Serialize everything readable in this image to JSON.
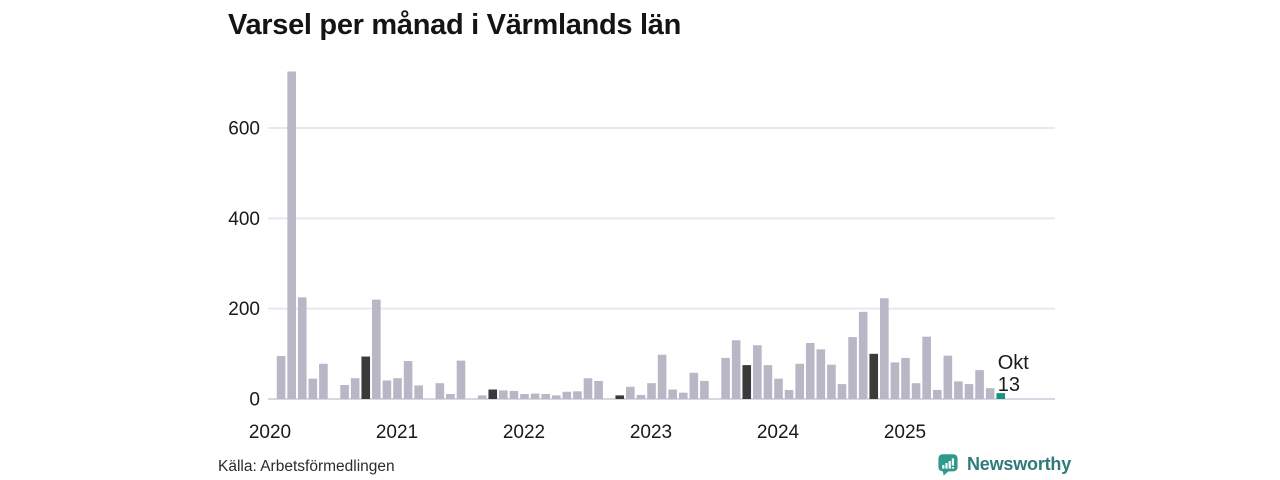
{
  "title": "Varsel per månad i Värmlands län",
  "footer": {
    "source": "Källa: Arbetsförmedlingen",
    "brand": "Newsworthy"
  },
  "colors": {
    "bar_default": "#b9b6c5",
    "bar_dark": "#3a3a3a",
    "bar_highlight": "#12947f",
    "gridline": "#e9e7f0",
    "axis_line": "#d9d7e3",
    "tick_text": "#1a1a1a",
    "title_text": "#141414",
    "source_text": "#2b2b2b",
    "brand_text": "#2e7b78",
    "brand_icon": "#2f9a8c"
  },
  "chart_data": {
    "type": "bar",
    "title": "Varsel per månad i Värmlands län",
    "xlabel": "",
    "ylabel": "",
    "ylim": [
      0,
      740
    ],
    "yticks": [
      0,
      200,
      400,
      600
    ],
    "grid": true,
    "legend": "none",
    "year_labels": [
      "2020",
      "2021",
      "2022",
      "2023",
      "2024",
      "2025"
    ],
    "months": [
      "2020-01",
      "2020-02",
      "2020-03",
      "2020-04",
      "2020-05",
      "2020-06",
      "2020-07",
      "2020-08",
      "2020-09",
      "2020-10",
      "2020-11",
      "2020-12",
      "2021-01",
      "2021-02",
      "2021-03",
      "2021-04",
      "2021-05",
      "2021-06",
      "2021-07",
      "2021-08",
      "2021-09",
      "2021-10",
      "2021-11",
      "2021-12",
      "2022-01",
      "2022-02",
      "2022-03",
      "2022-04",
      "2022-05",
      "2022-06",
      "2022-07",
      "2022-08",
      "2022-09",
      "2022-10",
      "2022-11",
      "2022-12",
      "2023-01",
      "2023-02",
      "2023-03",
      "2023-04",
      "2023-05",
      "2023-06",
      "2023-07",
      "2023-08",
      "2023-09",
      "2023-10",
      "2023-11",
      "2023-12",
      "2024-01",
      "2024-02",
      "2024-03",
      "2024-04",
      "2024-05",
      "2024-06",
      "2024-07",
      "2024-08",
      "2024-09",
      "2024-10",
      "2024-11",
      "2024-12",
      "2025-01",
      "2025-02",
      "2025-03",
      "2025-04",
      "2025-05",
      "2025-06",
      "2025-07",
      "2025-08",
      "2025-09",
      "2025-10"
    ],
    "values": [
      0,
      95,
      725,
      225,
      45,
      78,
      0,
      31,
      46,
      94,
      220,
      41,
      46,
      84,
      30,
      0,
      35,
      11,
      85,
      0,
      8,
      21,
      19,
      18,
      11,
      12,
      11,
      8,
      16,
      17,
      46,
      40,
      0,
      8,
      27,
      9,
      35,
      98,
      21,
      14,
      58,
      40,
      0,
      91,
      130,
      75,
      119,
      75,
      45,
      20,
      78,
      124,
      110,
      76,
      33,
      137,
      193,
      100,
      223,
      81,
      91,
      35,
      138,
      20,
      96,
      39,
      33,
      64,
      24,
      13
    ],
    "dark_months": [
      "2020-10",
      "2021-10",
      "2022-10",
      "2023-10",
      "2024-10"
    ],
    "highlight_month": "2025-10",
    "annotation": {
      "line1": "Okt",
      "line2": "13"
    }
  }
}
